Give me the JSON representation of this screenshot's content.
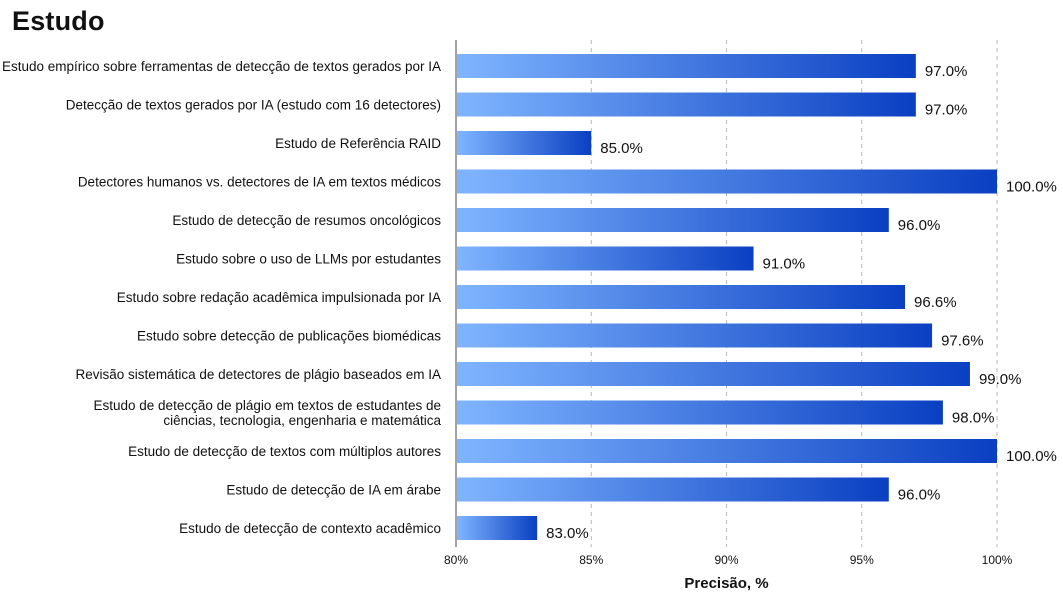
{
  "chart_data": {
    "type": "bar",
    "orientation": "horizontal",
    "title": "Estudo",
    "xlabel": "Precisão, %",
    "ylabel": "",
    "xlim": [
      80,
      100
    ],
    "xticks": [
      80,
      85,
      90,
      95,
      100
    ],
    "xtick_labels": [
      "80%",
      "85%",
      "90%",
      "95%",
      "100%"
    ],
    "grid": "vertical dashed",
    "bar_color_start": "#7fb5ff",
    "bar_color_end": "#0a3fc2",
    "categories": [
      [
        "Estudo empírico sobre ferramentas de detecção de textos gerados por IA"
      ],
      [
        "Detecção de textos gerados por IA (estudo com 16 detectores)"
      ],
      [
        "Estudo de Referência RAID"
      ],
      [
        "Detectores humanos vs. detectores de IA em textos médicos"
      ],
      [
        "Estudo de detecção de resumos oncológicos"
      ],
      [
        "Estudo sobre o uso de LLMs por estudantes"
      ],
      [
        "Estudo sobre redação acadêmica impulsionada por IA"
      ],
      [
        "Estudo sobre detecção de publicações biomédicas"
      ],
      [
        "Revisão sistemática de detectores de plágio baseados em IA"
      ],
      [
        "Estudo de detecção de plágio em textos de estudantes de",
        "ciências, tecnologia, engenharia e matemática"
      ],
      [
        "Estudo de detecção de textos com múltiplos autores"
      ],
      [
        "Estudo de detecção de IA em árabe"
      ],
      [
        "Estudo de detecção de contexto acadêmico"
      ]
    ],
    "values": [
      97.0,
      97.0,
      85.0,
      100.0,
      96.0,
      91.0,
      96.6,
      97.6,
      99.0,
      98.0,
      100.0,
      96.0,
      83.0
    ],
    "value_labels": [
      "97.0%",
      "97.0%",
      "85.0%",
      "100.0%",
      "96.0%",
      "91.0%",
      "96.6%",
      "97.6%",
      "99.0%",
      "98.0%",
      "100.0%",
      "96.0%",
      "83.0%"
    ]
  }
}
